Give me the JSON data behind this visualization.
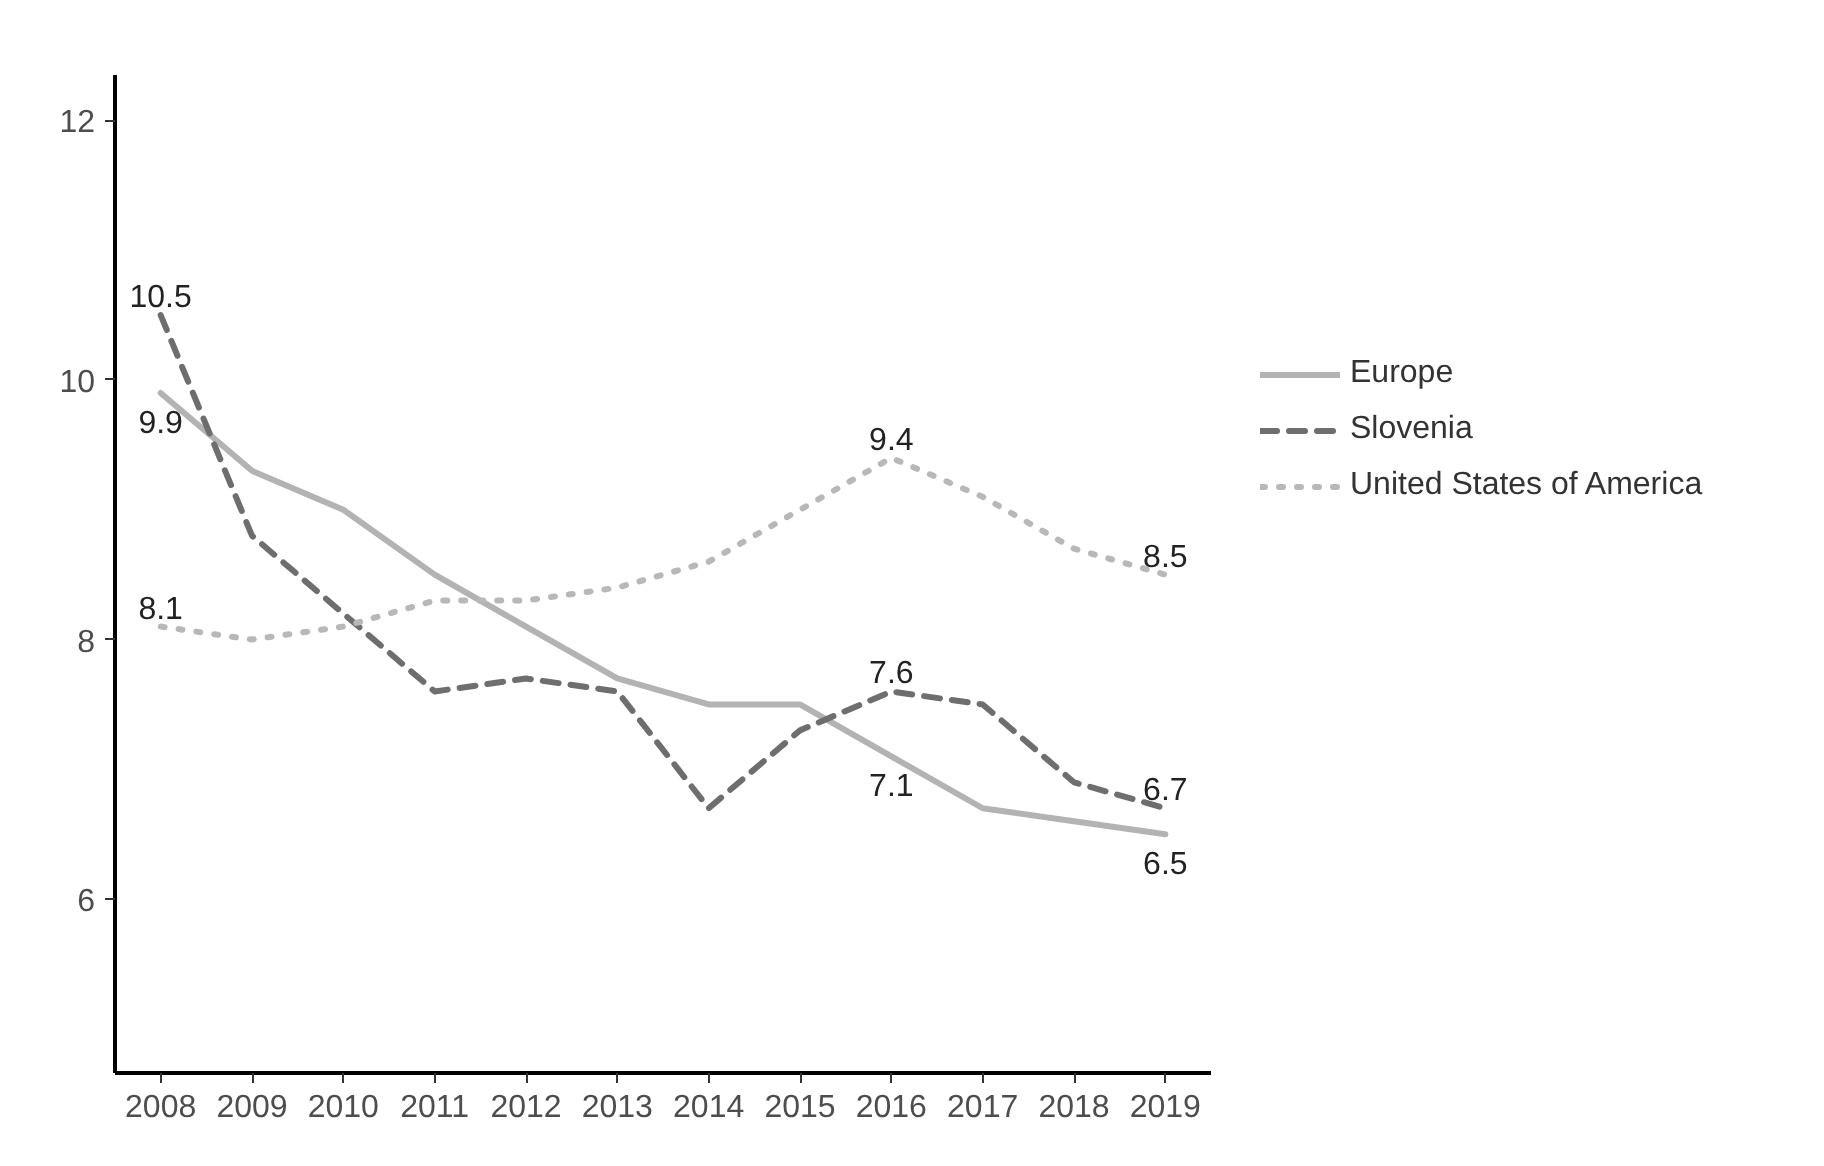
{
  "chart_data": {
    "type": "line",
    "categories": [
      "2008",
      "2009",
      "2010",
      "2011",
      "2012",
      "2013",
      "2014",
      "2015",
      "2016",
      "2017",
      "2018",
      "2019"
    ],
    "series": [
      {
        "name": "Europe",
        "color": "#b3b3b3",
        "line_style": "solid",
        "values": [
          9.9,
          9.3,
          9.0,
          8.5,
          8.1,
          7.7,
          7.5,
          7.5,
          7.1,
          6.7,
          6.6,
          6.5
        ],
        "value_labels": [
          "9.9",
          null,
          null,
          null,
          null,
          null,
          null,
          null,
          "7.1",
          null,
          null,
          "6.5"
        ]
      },
      {
        "name": "Slovenia",
        "color": "#6e6e6e",
        "line_style": "dashed",
        "values": [
          10.5,
          8.8,
          8.2,
          7.6,
          7.7,
          7.6,
          6.7,
          7.3,
          7.6,
          7.5,
          6.9,
          6.7
        ],
        "value_labels": [
          "10.5",
          null,
          null,
          null,
          null,
          null,
          null,
          null,
          "7.6",
          null,
          null,
          "6.7"
        ]
      },
      {
        "name": "United States of America",
        "color": "#b8b8b8",
        "line_style": "dotted",
        "values": [
          8.1,
          8.0,
          8.1,
          8.3,
          8.3,
          8.4,
          8.6,
          9.0,
          9.4,
          9.1,
          8.7,
          8.5
        ],
        "value_labels": [
          "8.1",
          null,
          null,
          null,
          null,
          null,
          null,
          null,
          "9.4",
          null,
          null,
          "8.5"
        ]
      }
    ],
    "ylim": [
      4.66,
      12.35
    ],
    "yticks": [
      6,
      8,
      10,
      12
    ],
    "grid": false,
    "legend": "right"
  }
}
